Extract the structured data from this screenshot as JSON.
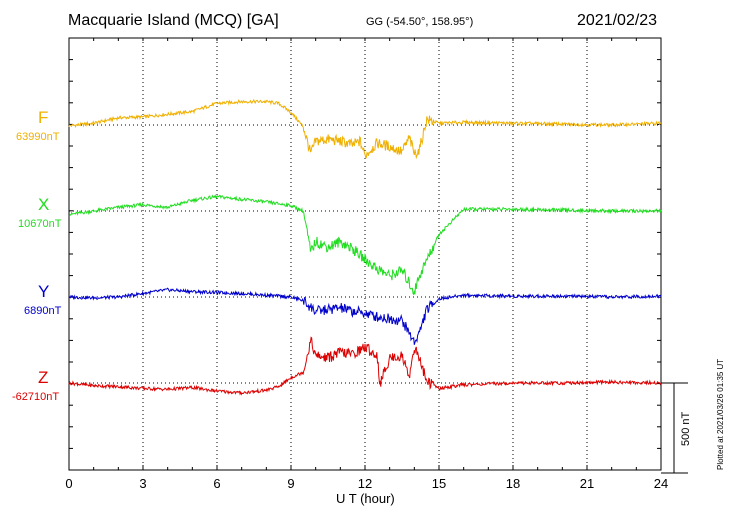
{
  "header": {
    "title": "Macquarie Island (MCQ)  [GA]",
    "coords": "GG (-54.50°, 158.95°)",
    "date": "2021/02/23"
  },
  "footer": {
    "plotted": "Plotted at 2021/03/26 01:35 UT"
  },
  "chart_data": {
    "type": "line",
    "xlabel": "U T (hour)",
    "xlim": [
      0,
      24
    ],
    "xticks": [
      "0",
      "3",
      "6",
      "9",
      "12",
      "15",
      "18",
      "21",
      "24"
    ],
    "grid": true,
    "scale_bar": {
      "label": "500 nT",
      "value": 500
    },
    "series": [
      {
        "name": "F",
        "baseline_label": "63990nT",
        "color": "#f0b000",
        "points": [
          [
            0,
            -5
          ],
          [
            1,
            10
          ],
          [
            2,
            40
          ],
          [
            3,
            45
          ],
          [
            4,
            60
          ],
          [
            5,
            75
          ],
          [
            6,
            120
          ],
          [
            7,
            130
          ],
          [
            8,
            130
          ],
          [
            8.5,
            120
          ],
          [
            9,
            70
          ],
          [
            9.5,
            -10
          ],
          [
            9.7,
            -110
          ],
          [
            9.8,
            -160
          ],
          [
            10,
            -90
          ],
          [
            10.5,
            -80
          ],
          [
            11,
            -90
          ],
          [
            11.5,
            -110
          ],
          [
            11.8,
            -90
          ],
          [
            12,
            -170
          ],
          [
            12.5,
            -100
          ],
          [
            13,
            -120
          ],
          [
            13.5,
            -150
          ],
          [
            13.8,
            -70
          ],
          [
            14,
            -160
          ],
          [
            14.2,
            -140
          ],
          [
            14.5,
            30
          ],
          [
            15,
            10
          ],
          [
            16,
            15
          ],
          [
            18,
            10
          ],
          [
            20,
            5
          ],
          [
            22,
            0
          ],
          [
            24,
            10
          ]
        ]
      },
      {
        "name": "X",
        "baseline_label": "10670nT",
        "color": "#22dd22",
        "points": [
          [
            0,
            -20
          ],
          [
            1,
            0
          ],
          [
            2,
            20
          ],
          [
            3,
            35
          ],
          [
            4,
            20
          ],
          [
            5,
            60
          ],
          [
            6,
            80
          ],
          [
            7,
            65
          ],
          [
            8,
            50
          ],
          [
            9,
            30
          ],
          [
            9.5,
            0
          ],
          [
            9.8,
            -230
          ],
          [
            10,
            -170
          ],
          [
            10.5,
            -200
          ],
          [
            11,
            -170
          ],
          [
            11.5,
            -210
          ],
          [
            12,
            -270
          ],
          [
            12.5,
            -320
          ],
          [
            13,
            -360
          ],
          [
            13.5,
            -330
          ],
          [
            14,
            -450
          ],
          [
            14.2,
            -360
          ],
          [
            15,
            -130
          ],
          [
            16,
            10
          ],
          [
            18,
            10
          ],
          [
            20,
            5
          ],
          [
            22,
            0
          ],
          [
            24,
            0
          ]
        ]
      },
      {
        "name": "Y",
        "baseline_label": "6890nT",
        "color": "#0000cc",
        "points": [
          [
            0,
            0
          ],
          [
            1,
            -5
          ],
          [
            2,
            0
          ],
          [
            3,
            20
          ],
          [
            4,
            40
          ],
          [
            5,
            30
          ],
          [
            6,
            25
          ],
          [
            7,
            20
          ],
          [
            8,
            10
          ],
          [
            9,
            0
          ],
          [
            9.5,
            -20
          ],
          [
            10,
            -80
          ],
          [
            10.5,
            -70
          ],
          [
            11,
            -60
          ],
          [
            11.5,
            -80
          ],
          [
            12,
            -90
          ],
          [
            12.5,
            -110
          ],
          [
            13,
            -120
          ],
          [
            13.5,
            -130
          ],
          [
            14,
            -250
          ],
          [
            14.2,
            -200
          ],
          [
            14.5,
            -70
          ],
          [
            15,
            -10
          ],
          [
            16,
            10
          ],
          [
            18,
            5
          ],
          [
            20,
            5
          ],
          [
            22,
            0
          ],
          [
            24,
            5
          ]
        ]
      },
      {
        "name": "Z",
        "baseline_label": "-62710nT",
        "color": "#dd0000",
        "points": [
          [
            0,
            0
          ],
          [
            1,
            -15
          ],
          [
            2,
            -20
          ],
          [
            3,
            -30
          ],
          [
            4,
            -35
          ],
          [
            5,
            -25
          ],
          [
            6,
            -45
          ],
          [
            7,
            -55
          ],
          [
            8,
            -40
          ],
          [
            8.5,
            -20
          ],
          [
            9,
            30
          ],
          [
            9.5,
            60
          ],
          [
            9.8,
            240
          ],
          [
            10,
            150
          ],
          [
            10.5,
            140
          ],
          [
            11,
            170
          ],
          [
            11.5,
            160
          ],
          [
            12,
            200
          ],
          [
            12.5,
            150
          ],
          [
            12.6,
            -10
          ],
          [
            13,
            140
          ],
          [
            13.5,
            150
          ],
          [
            13.8,
            40
          ],
          [
            14,
            200
          ],
          [
            14.3,
            100
          ],
          [
            14.5,
            10
          ],
          [
            15,
            -30
          ],
          [
            16,
            -10
          ],
          [
            18,
            0
          ],
          [
            20,
            0
          ],
          [
            22,
            5
          ],
          [
            24,
            0
          ]
        ]
      }
    ]
  }
}
